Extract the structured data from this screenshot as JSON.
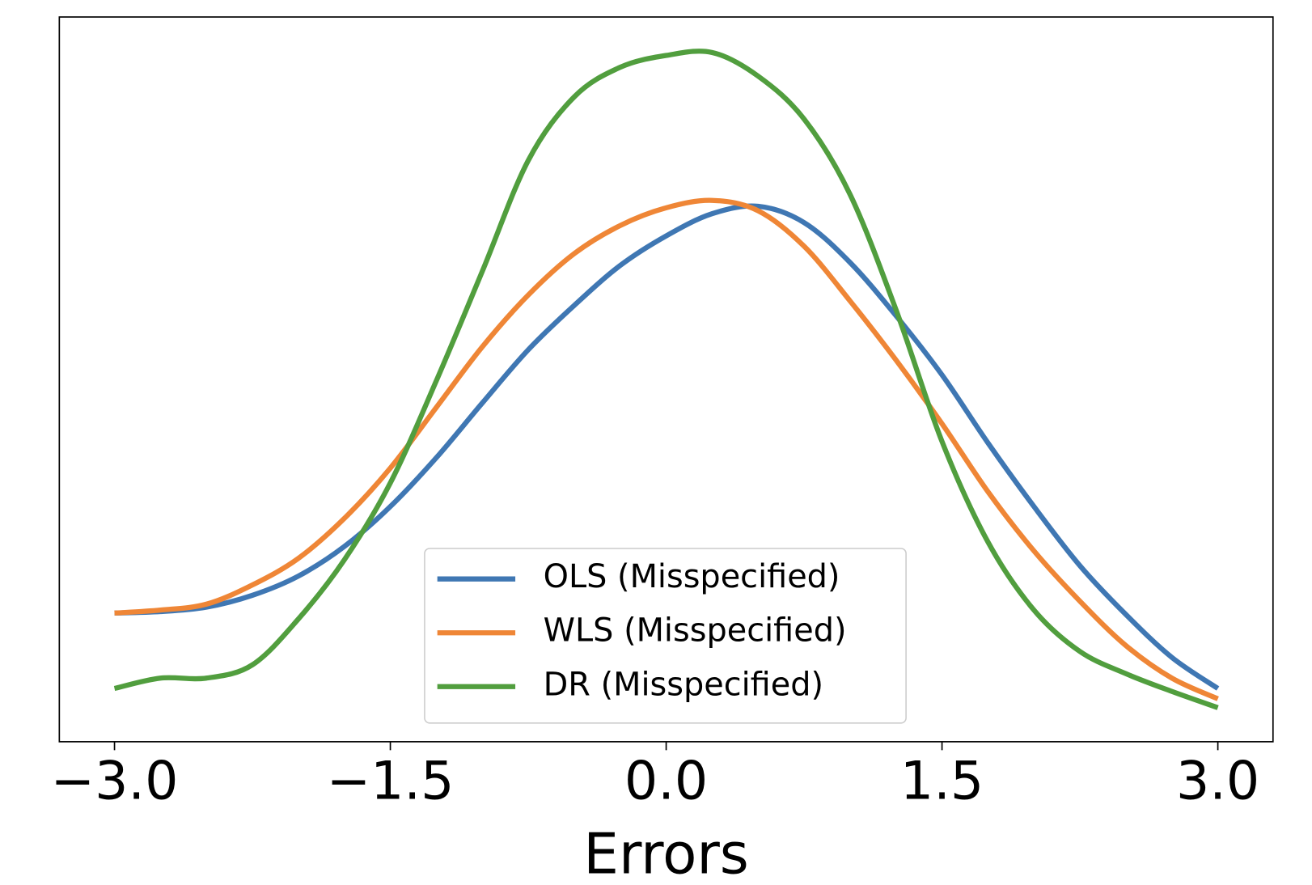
{
  "chart_data": {
    "type": "line",
    "x_label": "Errors",
    "x": [
      -3,
      -2.75,
      -2.5,
      -2.25,
      -2,
      -1.75,
      -1.5,
      -1.25,
      -1,
      -0.75,
      -0.5,
      -0.25,
      0,
      0.25,
      0.5,
      0.75,
      1,
      1.25,
      1.5,
      1.75,
      2,
      2.25,
      2.5,
      2.75,
      3
    ],
    "series": [
      {
        "name": "OLS (Misspecified)",
        "color": "#3f77b3",
        "values": [
          0.067,
          0.068,
          0.071,
          0.079,
          0.092,
          0.112,
          0.139,
          0.172,
          0.209,
          0.245,
          0.275,
          0.302,
          0.322,
          0.337,
          0.342,
          0.331,
          0.304,
          0.268,
          0.228,
          0.182,
          0.139,
          0.099,
          0.066,
          0.037,
          0.016
        ]
      },
      {
        "name": "WLS (Misspecified)",
        "color": "#ef8636",
        "values": [
          0.067,
          0.069,
          0.073,
          0.086,
          0.104,
          0.131,
          0.165,
          0.206,
          0.247,
          0.282,
          0.31,
          0.329,
          0.341,
          0.346,
          0.339,
          0.315,
          0.278,
          0.238,
          0.195,
          0.149,
          0.109,
          0.075,
          0.045,
          0.023,
          0.009
        ]
      },
      {
        "name": "DR (Misspecified)",
        "color": "#519e3e",
        "values": [
          0.016,
          0.023,
          0.023,
          0.032,
          0.063,
          0.103,
          0.155,
          0.224,
          0.298,
          0.373,
          0.416,
          0.436,
          0.444,
          0.446,
          0.43,
          0.401,
          0.35,
          0.272,
          0.183,
          0.115,
          0.069,
          0.041,
          0.026,
          0.014,
          0.003
        ]
      }
    ],
    "xlim": [
      -3.3,
      3.3
    ],
    "xticks": [
      {
        "value": -3,
        "label": "−3.0"
      },
      {
        "value": -1.5,
        "label": "−1.5"
      },
      {
        "value": 0,
        "label": "0.0"
      },
      {
        "value": 1.5,
        "label": "1.5"
      },
      {
        "value": 3,
        "label": "3.0"
      }
    ],
    "ylim": [
      -0.02,
      0.47
    ],
    "grid": false,
    "legend": "lower center"
  }
}
